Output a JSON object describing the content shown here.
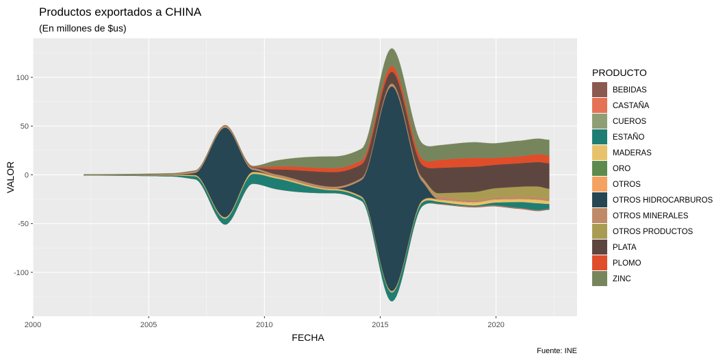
{
  "chart_data": {
    "type": "area",
    "subtype": "streamgraph",
    "title": "Productos exportados a CHINA",
    "subtitle": "(En millones de $us)",
    "xlabel": "FECHA",
    "ylabel": "VALOR",
    "caption": "Fuente: INE",
    "legend_title": "PRODUCTO",
    "legend_position": "right",
    "grid": true,
    "xlim": [
      2000,
      2023.5
    ],
    "ylim": [
      -145,
      140
    ],
    "x_ticks": [
      2000,
      2005,
      2010,
      2015,
      2020
    ],
    "y_ticks": [
      -100,
      -50,
      0,
      50,
      100
    ],
    "x": [
      2002.2,
      2006,
      2007,
      2008.3,
      2009.5,
      2010.5,
      2013,
      2014.2,
      2015.5,
      2016.8,
      2017.5,
      2019,
      2020,
      2021,
      2021.8,
      2022.3
    ],
    "series": [
      {
        "name": "BEBIDAS",
        "color": "#8B5A4E",
        "values": [
          0,
          0,
          0,
          0,
          0,
          0,
          0,
          0,
          0,
          0,
          0.3,
          0.5,
          0.5,
          0.5,
          0.5,
          0.5
        ]
      },
      {
        "name": "CASTAÑA",
        "color": "#E57255",
        "values": [
          0,
          0,
          0,
          0,
          0,
          0,
          0,
          0,
          0,
          0,
          0.3,
          0.5,
          0.5,
          0.5,
          0.5,
          0.5
        ]
      },
      {
        "name": "CUEROS",
        "color": "#8F9E74",
        "values": [
          0,
          0,
          0,
          0,
          0,
          0,
          0,
          0,
          0,
          0,
          0,
          0,
          0,
          0,
          0,
          0
        ]
      },
      {
        "name": "ESTAÑO",
        "color": "#1F7E73",
        "values": [
          0.3,
          1,
          3,
          6,
          10,
          11,
          3,
          3,
          9,
          4,
          2,
          1,
          3,
          6,
          7,
          5
        ]
      },
      {
        "name": "MADERAS",
        "color": "#E8C26A",
        "values": [
          0,
          0.5,
          1,
          1,
          1.5,
          1.5,
          1,
          1,
          1,
          1.5,
          2,
          3,
          3,
          3,
          3.5,
          3
        ]
      },
      {
        "name": "ORO",
        "color": "#5D8B4E",
        "values": [
          0,
          0,
          0,
          0,
          0,
          0,
          0,
          0,
          0,
          0,
          0,
          0,
          0,
          0,
          0,
          0
        ]
      },
      {
        "name": "OTROS",
        "color": "#F4A261",
        "values": [
          0,
          0.2,
          0.3,
          0.5,
          0.6,
          0.6,
          0.6,
          0.6,
          0.6,
          0.6,
          0.7,
          0.7,
          0.7,
          0.7,
          0.7,
          0.7
        ]
      },
      {
        "name": "OTROS HIDROCARBUROS",
        "color": "#264653",
        "values": [
          0,
          0,
          2,
          92,
          2,
          0,
          0,
          17,
          210,
          20,
          0,
          0,
          0,
          0,
          0,
          0
        ]
      },
      {
        "name": "OTROS MINERALES",
        "color": "#BF8A68",
        "values": [
          0.3,
          1,
          2,
          2,
          2,
          2,
          2,
          2,
          3,
          3,
          3,
          2,
          2,
          2,
          2,
          2
        ]
      },
      {
        "name": "OTROS PRODUCTOS",
        "color": "#A99C52",
        "values": [
          0,
          0,
          0,
          0,
          0,
          0,
          0,
          0,
          0,
          1,
          3,
          8,
          9,
          10,
          11,
          10
        ]
      },
      {
        "name": "PLATA",
        "color": "#5E4640",
        "values": [
          0,
          0,
          0,
          0,
          0.5,
          5,
          15,
          14,
          12,
          13,
          26,
          26,
          24,
          24,
          25,
          26
        ]
      },
      {
        "name": "PLOMO",
        "color": "#E04D2A",
        "values": [
          0,
          0,
          0,
          0,
          0.5,
          3,
          4,
          4,
          6,
          6,
          8,
          9,
          7,
          7,
          8,
          8
        ]
      },
      {
        "name": "ZINC",
        "color": "#77855D",
        "values": [
          0.5,
          0.5,
          0.5,
          0.5,
          1,
          6,
          12,
          12,
          18,
          16,
          15,
          16,
          15,
          16,
          16,
          16
        ]
      }
    ]
  }
}
